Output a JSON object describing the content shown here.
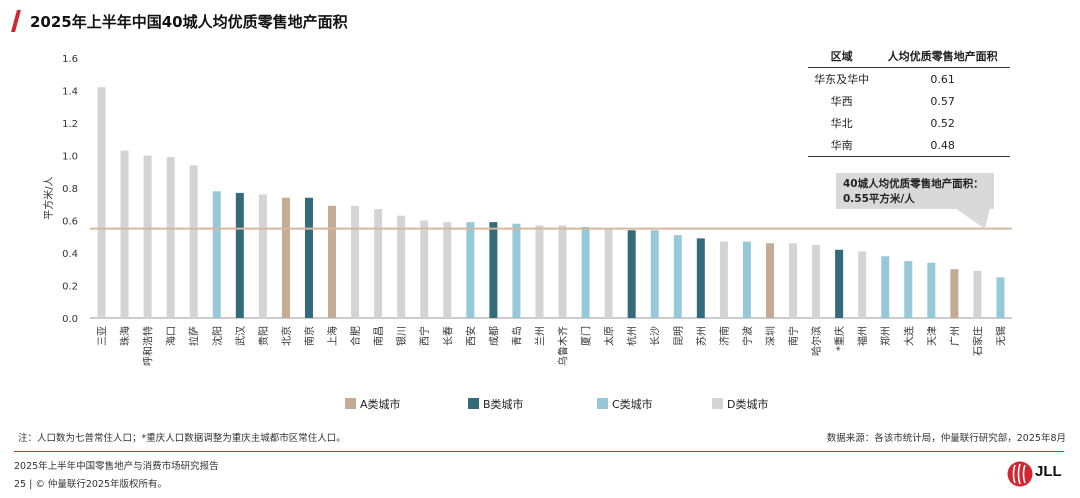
{
  "title": "2025年上半年中国40城人均优质零售地产面积",
  "chart_data": {
    "type": "bar",
    "ylabel": "平方米/人",
    "ylim": [
      0,
      1.6
    ],
    "yticks": [
      "0.0",
      "0.2",
      "0.4",
      "0.6",
      "0.8",
      "1.0",
      "1.2",
      "1.4",
      "1.6"
    ],
    "average": 0.55,
    "categories": [
      "三亚",
      "珠海",
      "呼和浩特",
      "海口",
      "拉萨",
      "沈阳",
      "武汉",
      "贵阳",
      "北京",
      "南京",
      "上海",
      "合肥",
      "南昌",
      "银川",
      "西宁",
      "长春",
      "西安",
      "成都",
      "青岛",
      "兰州",
      "乌鲁木齐",
      "厦门",
      "太原",
      "杭州",
      "长沙",
      "昆明",
      "苏州",
      "济南",
      "宁波",
      "深圳",
      "南宁",
      "哈尔滨",
      "*重庆",
      "福州",
      "郑州",
      "大连",
      "天津",
      "广州",
      "石家庄",
      "无锡"
    ],
    "values": [
      1.42,
      1.03,
      1.0,
      0.99,
      0.94,
      0.78,
      0.77,
      0.76,
      0.74,
      0.74,
      0.69,
      0.69,
      0.67,
      0.63,
      0.6,
      0.59,
      0.59,
      0.59,
      0.58,
      0.57,
      0.57,
      0.56,
      0.55,
      0.54,
      0.54,
      0.51,
      0.49,
      0.47,
      0.47,
      0.46,
      0.46,
      0.45,
      0.42,
      0.41,
      0.38,
      0.35,
      0.34,
      0.3,
      0.29,
      0.25
    ],
    "classes": [
      "D",
      "D",
      "D",
      "D",
      "D",
      "C",
      "B",
      "D",
      "A",
      "B",
      "A",
      "D",
      "D",
      "D",
      "D",
      "D",
      "C",
      "B",
      "C",
      "D",
      "D",
      "C",
      "D",
      "B",
      "C",
      "C",
      "B",
      "D",
      "C",
      "A",
      "D",
      "D",
      "B",
      "D",
      "C",
      "C",
      "C",
      "A",
      "D",
      "C"
    ],
    "legend": [
      {
        "key": "A",
        "label": "A类城市",
        "color": "#c4ab94"
      },
      {
        "key": "B",
        "label": "B类城市",
        "color": "#336b7a"
      },
      {
        "key": "C",
        "label": "C类城市",
        "color": "#96c8d8"
      },
      {
        "key": "D",
        "label": "D类城市",
        "color": "#d4d4d4"
      }
    ],
    "average_line_color": "#d6b89d"
  },
  "region_table": {
    "headers": [
      "区域",
      "人均优质零售地产面积"
    ],
    "rows": [
      [
        "华东及华中",
        "0.61"
      ],
      [
        "华西",
        "0.57"
      ],
      [
        "华北",
        "0.52"
      ],
      [
        "华南",
        "0.48"
      ]
    ]
  },
  "callout": {
    "line1": "40城人均优质零售地产面积：",
    "line2": "0.55平方米/人"
  },
  "note": "注：人口数为七普常住人口；*重庆人口数据调整为重庆主城都市区常住人口。",
  "source": "数据来源：各该市统计局，仲量联行研究部，2025年8月",
  "footer": {
    "report": "2025年上半年中国零售地产与消费市场研究报告",
    "copyright": "25 | © 仲量联行2025年版权所有。",
    "logo_text": "JLL"
  },
  "colors": {
    "accent": "#d22630"
  }
}
